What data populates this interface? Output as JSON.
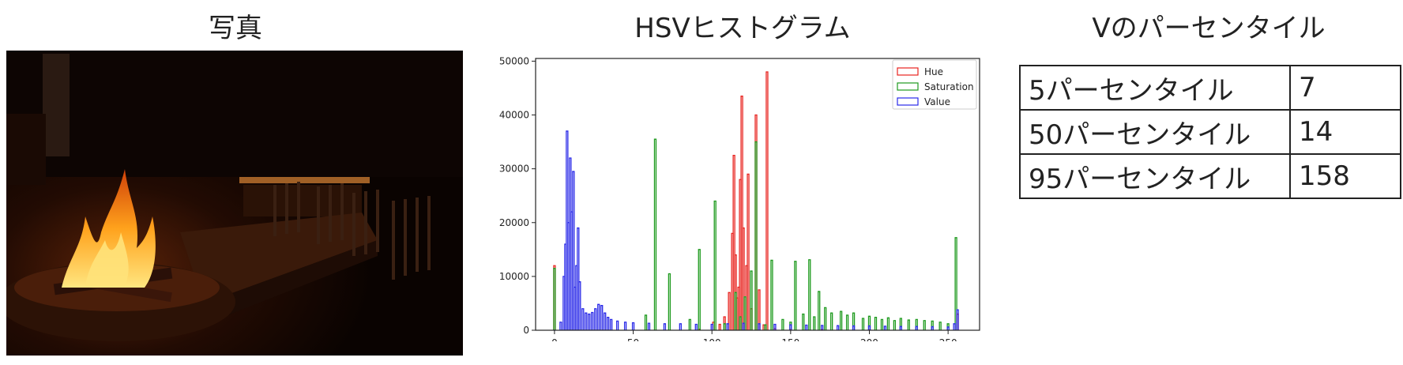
{
  "titles": {
    "photo": "写真",
    "histogram": "HSVヒストグラム",
    "percentile": "Vのパーセンタイル"
  },
  "percentile_table": [
    {
      "label": "5パーセンタイル",
      "value": "7"
    },
    {
      "label": "50パーセンタイル",
      "value": "14"
    },
    {
      "label": "95パーセンタイル",
      "value": "158"
    }
  ],
  "photo": {
    "description_tag": "fireplace-restaurant-photo",
    "colors": {
      "background": "#0c0402",
      "flame": "#ff9a1a",
      "flame_core": "#ffe070",
      "wood": "#3a1a0a"
    }
  },
  "chart_data": {
    "type": "histogram",
    "title": "",
    "xlabel": "",
    "ylabel": "",
    "xlim": [
      -12,
      270
    ],
    "ylim": [
      0,
      50500
    ],
    "xticks": [
      0,
      50,
      100,
      150,
      200,
      250
    ],
    "yticks": [
      0,
      10000,
      20000,
      30000,
      40000,
      50000
    ],
    "legend_position": "top-right",
    "histtype": "step",
    "series": [
      {
        "name": "Hue",
        "color": "#e8231f",
        "points": [
          [
            0,
            12000
          ],
          [
            92,
            200
          ],
          [
            101,
            1500
          ],
          [
            105,
            1100
          ],
          [
            108,
            2500
          ],
          [
            111,
            7000
          ],
          [
            113,
            18000
          ],
          [
            114,
            32500
          ],
          [
            115,
            14000
          ],
          [
            116,
            6000
          ],
          [
            117,
            8000
          ],
          [
            118,
            28000
          ],
          [
            119,
            43500
          ],
          [
            120,
            19000
          ],
          [
            122,
            12000
          ],
          [
            123,
            29000
          ],
          [
            125,
            4000
          ],
          [
            128,
            40000
          ],
          [
            130,
            7500
          ],
          [
            133,
            1000
          ],
          [
            135,
            48000
          ],
          [
            140,
            300
          ],
          [
            150,
            150
          ],
          [
            170,
            100
          ],
          [
            200,
            50
          ],
          [
            256,
            3000
          ]
        ]
      },
      {
        "name": "Saturation",
        "color": "#1e9a1e",
        "points": [
          [
            0,
            11500
          ],
          [
            58,
            2800
          ],
          [
            64,
            35500
          ],
          [
            73,
            10500
          ],
          [
            86,
            2000
          ],
          [
            92,
            15000
          ],
          [
            102,
            24000
          ],
          [
            108,
            1200
          ],
          [
            115,
            7000
          ],
          [
            118,
            2500
          ],
          [
            121,
            6200
          ],
          [
            125,
            11000
          ],
          [
            128,
            35000
          ],
          [
            134,
            1000
          ],
          [
            138,
            13000
          ],
          [
            145,
            2000
          ],
          [
            150,
            1500
          ],
          [
            153,
            12800
          ],
          [
            158,
            3000
          ],
          [
            162,
            13100
          ],
          [
            165,
            2500
          ],
          [
            168,
            7200
          ],
          [
            172,
            4200
          ],
          [
            176,
            3200
          ],
          [
            182,
            3500
          ],
          [
            186,
            2800
          ],
          [
            190,
            3200
          ],
          [
            196,
            2200
          ],
          [
            200,
            2600
          ],
          [
            204,
            2400
          ],
          [
            208,
            2000
          ],
          [
            212,
            2300
          ],
          [
            216,
            1800
          ],
          [
            220,
            2200
          ],
          [
            225,
            1900
          ],
          [
            230,
            2000
          ],
          [
            235,
            1800
          ],
          [
            240,
            1700
          ],
          [
            245,
            1500
          ],
          [
            250,
            1200
          ],
          [
            255,
            17200
          ]
        ]
      },
      {
        "name": "Value",
        "color": "#2a2ae8",
        "points": [
          [
            0,
            0
          ],
          [
            4,
            1500
          ],
          [
            6,
            10000
          ],
          [
            7,
            16000
          ],
          [
            8,
            37000
          ],
          [
            9,
            20000
          ],
          [
            10,
            32000
          ],
          [
            11,
            22000
          ],
          [
            12,
            29500
          ],
          [
            13,
            8000
          ],
          [
            14,
            12000
          ],
          [
            15,
            19000
          ],
          [
            16,
            9000
          ],
          [
            18,
            4000
          ],
          [
            20,
            3200
          ],
          [
            22,
            3000
          ],
          [
            24,
            3300
          ],
          [
            26,
            4000
          ],
          [
            28,
            4800
          ],
          [
            30,
            4600
          ],
          [
            32,
            3200
          ],
          [
            34,
            2400
          ],
          [
            36,
            2000
          ],
          [
            40,
            1700
          ],
          [
            45,
            1500
          ],
          [
            50,
            1400
          ],
          [
            60,
            1300
          ],
          [
            70,
            1200
          ],
          [
            80,
            1200
          ],
          [
            90,
            1100
          ],
          [
            100,
            1100
          ],
          [
            110,
            1200
          ],
          [
            120,
            1300
          ],
          [
            130,
            1200
          ],
          [
            140,
            1100
          ],
          [
            150,
            1000
          ],
          [
            160,
            950
          ],
          [
            170,
            900
          ],
          [
            180,
            850
          ],
          [
            190,
            800
          ],
          [
            200,
            800
          ],
          [
            210,
            750
          ],
          [
            220,
            700
          ],
          [
            230,
            700
          ],
          [
            240,
            650
          ],
          [
            250,
            600
          ],
          [
            254,
            1200
          ],
          [
            256,
            3800
          ]
        ]
      }
    ]
  }
}
